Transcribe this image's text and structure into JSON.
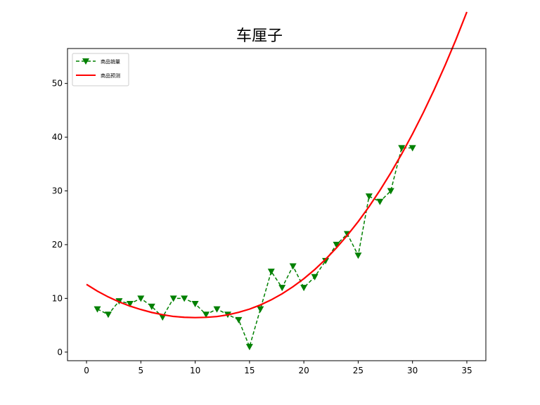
{
  "chart_data": {
    "type": "line",
    "title": "车厘子",
    "xlabel": "",
    "ylabel": "",
    "xlim": [
      -1.75,
      36.75
    ],
    "ylim": [
      -1.6,
      56.5
    ],
    "xticks": [
      0,
      5,
      10,
      15,
      20,
      25,
      30,
      35
    ],
    "yticks": [
      0,
      10,
      20,
      30,
      40,
      50
    ],
    "legend_position": "top-left",
    "grid": false,
    "series": [
      {
        "name": "商品销量",
        "style": "dashed",
        "marker": "triangle-down",
        "color": "#008000",
        "x": [
          1,
          2,
          3,
          4,
          5,
          6,
          7,
          8,
          9,
          10,
          11,
          12,
          13,
          14,
          15,
          16,
          17,
          18,
          19,
          20,
          21,
          22,
          23,
          24,
          25,
          26,
          27,
          28,
          29,
          30
        ],
        "y": [
          8,
          7,
          9.5,
          9,
          10,
          8.5,
          6.5,
          10,
          10,
          9,
          7,
          8,
          7,
          6,
          1,
          8,
          15,
          12,
          16,
          12,
          14,
          17,
          20,
          22,
          18,
          29,
          28,
          30,
          38,
          38
        ]
      },
      {
        "name": "商品预测",
        "style": "solid",
        "marker": "none",
        "color": "#ff0000",
        "x": [
          0,
          1,
          2,
          3,
          4,
          5,
          6,
          7,
          8,
          9,
          10,
          11,
          12,
          13,
          14,
          15,
          16,
          17,
          18,
          19,
          20,
          21,
          22,
          23,
          24,
          25,
          26,
          27,
          28,
          29,
          30,
          31,
          32,
          33,
          34,
          35
        ],
        "y": [
          12.6,
          11.35,
          10.27,
          9.34,
          8.56,
          7.92,
          7.38,
          6.96,
          6.64,
          6.48,
          6.42,
          6.47,
          6.62,
          6.93,
          7.4,
          8.0,
          8.78,
          9.73,
          10.86,
          12.17,
          13.66,
          15.36,
          17.27,
          19.4,
          21.73,
          24.29,
          27.07,
          30.1,
          33.36,
          36.86,
          40.6,
          44.6,
          48.86,
          53.39,
          58.18,
          63.3
        ]
      }
    ]
  }
}
